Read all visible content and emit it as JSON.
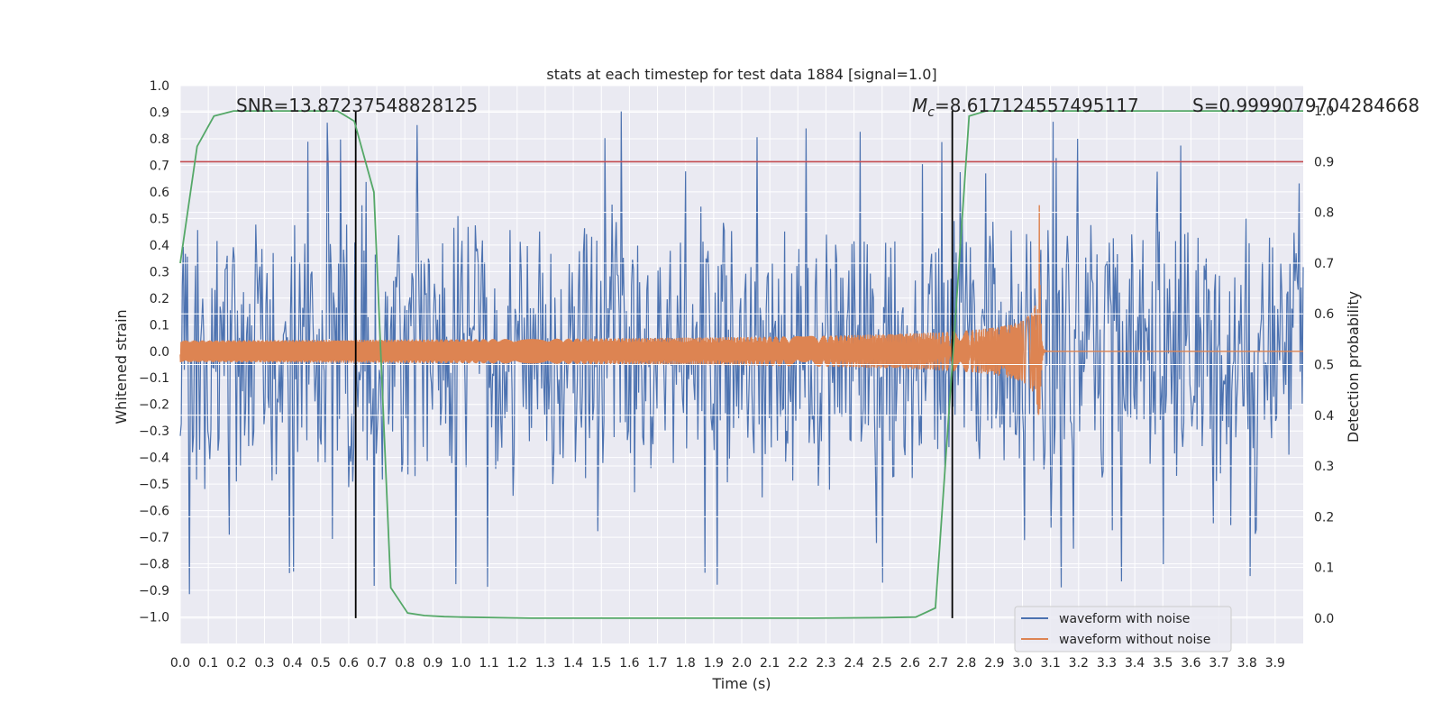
{
  "chart_data": {
    "type": "line",
    "title": "stats at each timestep for test data 1884 [signal=1.0]",
    "xlabel": "Time (s)",
    "ylabel": "Whitened strain",
    "y2label": "Detection probability",
    "xlim": [
      0.0,
      4.0
    ],
    "ylim": [
      -1.1,
      1.0
    ],
    "y2lim": [
      -0.05,
      1.05
    ],
    "x_ticks": [
      "0.0",
      "0.1",
      "0.2",
      "0.3",
      "0.4",
      "0.5",
      "0.6",
      "0.7",
      "0.8",
      "0.9",
      "1.0",
      "1.1",
      "1.2",
      "1.3",
      "1.4",
      "1.5",
      "1.6",
      "1.7",
      "1.8",
      "1.9",
      "2.0",
      "2.1",
      "2.2",
      "2.3",
      "2.4",
      "2.5",
      "2.6",
      "2.7",
      "2.8",
      "2.9",
      "3.0",
      "3.1",
      "3.2",
      "3.3",
      "3.4",
      "3.5",
      "3.6",
      "3.7",
      "3.8",
      "3.9"
    ],
    "y_ticks": [
      "1.0",
      "0.9",
      "0.8",
      "0.7",
      "0.6",
      "0.5",
      "0.4",
      "0.3",
      "0.2",
      "0.1",
      "0.0",
      "−0.1",
      "−0.2",
      "−0.3",
      "−0.4",
      "−0.5",
      "−0.6",
      "−0.7",
      "−0.8",
      "−0.9",
      "−1.0"
    ],
    "y2_ticks": [
      "0.0",
      "0.1",
      "0.2",
      "0.3",
      "0.4",
      "0.5",
      "0.6",
      "0.7",
      "0.8",
      "0.9",
      "1.0"
    ],
    "grid": true,
    "legend_position": "lower-right",
    "series": [
      {
        "name": "waveform with noise",
        "color": "#4c72b0",
        "kind": "noisy strain, amplitude about ±0.6 with spikes to ±0.9"
      },
      {
        "name": "waveform without noise",
        "color": "#dd8452",
        "kind": "chirp, amplitude grows from 0.04 to 0.55, merger at t=3.06 s"
      },
      {
        "name": "detection probability",
        "color": "#55a868",
        "axis": "right",
        "x": [
          0.0,
          0.06,
          0.12,
          0.19,
          0.25,
          0.31,
          0.37,
          0.44,
          0.5,
          0.56,
          0.62,
          0.69,
          0.75,
          0.81,
          0.87,
          0.94,
          1.0,
          1.25,
          1.5,
          1.75,
          2.0,
          2.25,
          2.5,
          2.62,
          2.69,
          2.75,
          2.81,
          2.87,
          2.94,
          3.0,
          3.25,
          3.5,
          3.75,
          4.0
        ],
        "values": [
          0.7,
          0.93,
          0.99,
          1.0,
          1.0,
          1.0,
          1.0,
          1.0,
          1.0,
          1.0,
          0.98,
          0.84,
          0.06,
          0.01,
          0.005,
          0.003,
          0.002,
          0.0,
          0.0,
          0.0,
          0.0,
          0.0,
          0.001,
          0.002,
          0.02,
          0.5,
          0.99,
          1.0,
          1.0,
          1.0,
          1.0,
          1.0,
          1.0,
          1.0
        ]
      }
    ],
    "threshold": {
      "value": 0.9,
      "axis": "right",
      "color": "#c44e52"
    },
    "vlines": [
      {
        "x": 0.625,
        "color": "#000000"
      },
      {
        "x": 2.75,
        "color": "#000000"
      }
    ],
    "legend": [
      {
        "label": "waveform with noise",
        "color": "#4c72b0"
      },
      {
        "label": "waveform without noise",
        "color": "#dd8452"
      }
    ],
    "annotations": {
      "snr": "SNR=13.87237548828125",
      "mc_symbol": "M",
      "mc_sub": "c",
      "mc_value": "=8.617124557495117",
      "s": "S=0.9999079704284668"
    }
  }
}
